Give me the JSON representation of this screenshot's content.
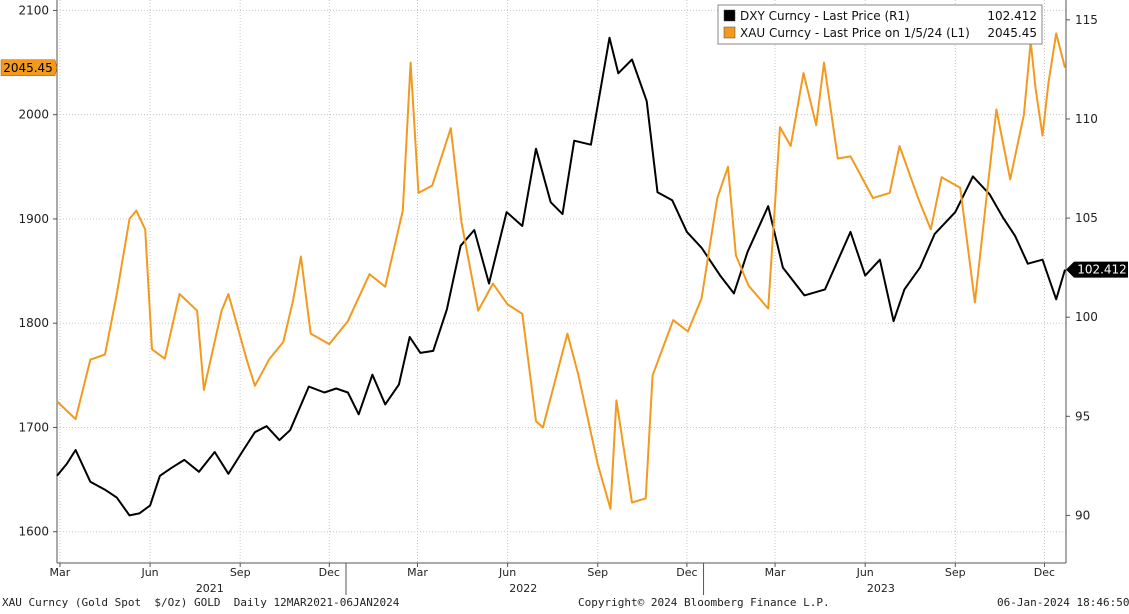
{
  "chart_data": {
    "type": "line",
    "x_range": [
      "2021-03-12",
      "2024-01-06"
    ],
    "y_left": {
      "label": "L1",
      "ylim": [
        1570,
        2110
      ],
      "ticks": [
        1600,
        1700,
        1800,
        1900,
        2000,
        2100
      ]
    },
    "y_right": {
      "label": "R1",
      "ylim": [
        87.6,
        116
      ],
      "ticks": [
        90,
        95,
        100,
        105,
        110,
        115
      ]
    },
    "x_month_labels": [
      {
        "label": "Mar",
        "date": "2021-03-15"
      },
      {
        "label": "Jun",
        "date": "2021-06-15"
      },
      {
        "label": "Sep",
        "date": "2021-09-15"
      },
      {
        "label": "Dec",
        "date": "2021-12-15"
      },
      {
        "label": "Mar",
        "date": "2022-03-15"
      },
      {
        "label": "Jun",
        "date": "2022-06-15"
      },
      {
        "label": "Sep",
        "date": "2022-09-15"
      },
      {
        "label": "Dec",
        "date": "2022-12-15"
      },
      {
        "label": "Mar",
        "date": "2023-03-15"
      },
      {
        "label": "Jun",
        "date": "2023-06-15"
      },
      {
        "label": "Sep",
        "date": "2023-09-15"
      },
      {
        "label": "Dec",
        "date": "2023-12-15"
      }
    ],
    "x_year_labels": [
      {
        "label": "2021",
        "date": "2021-08-15"
      },
      {
        "label": "2022",
        "date": "2022-07-01"
      },
      {
        "label": "2023",
        "date": "2023-07-01"
      }
    ],
    "series": [
      {
        "name": "DXY Curncy - Last Price (R1)",
        "last_label": "102.412",
        "axis": "right",
        "color": "#000000",
        "points": [
          [
            "2021-03-12",
            92.0
          ],
          [
            "2021-03-22",
            92.6
          ],
          [
            "2021-03-31",
            93.3
          ],
          [
            "2021-04-15",
            91.7
          ],
          [
            "2021-04-30",
            91.3
          ],
          [
            "2021-05-12",
            90.9
          ],
          [
            "2021-05-25",
            90.0
          ],
          [
            "2021-06-04",
            90.1
          ],
          [
            "2021-06-15",
            90.5
          ],
          [
            "2021-06-25",
            92.0
          ],
          [
            "2021-07-07",
            92.4
          ],
          [
            "2021-07-20",
            92.8
          ],
          [
            "2021-08-04",
            92.2
          ],
          [
            "2021-08-20",
            93.2
          ],
          [
            "2021-09-03",
            92.1
          ],
          [
            "2021-09-17",
            93.2
          ],
          [
            "2021-09-30",
            94.2
          ],
          [
            "2021-10-12",
            94.5
          ],
          [
            "2021-10-25",
            93.8
          ],
          [
            "2021-11-05",
            94.3
          ],
          [
            "2021-11-24",
            96.5
          ],
          [
            "2021-12-10",
            96.2
          ],
          [
            "2021-12-22",
            96.4
          ],
          [
            "2022-01-03",
            96.2
          ],
          [
            "2022-01-14",
            95.1
          ],
          [
            "2022-01-28",
            97.1
          ],
          [
            "2022-02-10",
            95.6
          ],
          [
            "2022-02-24",
            96.6
          ],
          [
            "2022-03-07",
            99.0
          ],
          [
            "2022-03-18",
            98.2
          ],
          [
            "2022-03-31",
            98.3
          ],
          [
            "2022-04-14",
            100.4
          ],
          [
            "2022-04-28",
            103.6
          ],
          [
            "2022-05-12",
            104.4
          ],
          [
            "2022-05-27",
            101.7
          ],
          [
            "2022-06-14",
            105.3
          ],
          [
            "2022-06-30",
            104.6
          ],
          [
            "2022-07-14",
            108.5
          ],
          [
            "2022-07-29",
            105.8
          ],
          [
            "2022-08-10",
            105.2
          ],
          [
            "2022-08-22",
            108.9
          ],
          [
            "2022-09-08",
            108.7
          ],
          [
            "2022-09-27",
            114.1
          ],
          [
            "2022-10-06",
            112.3
          ],
          [
            "2022-10-20",
            113.0
          ],
          [
            "2022-11-04",
            110.9
          ],
          [
            "2022-11-15",
            106.3
          ],
          [
            "2022-11-30",
            105.9
          ],
          [
            "2022-12-15",
            104.3
          ],
          [
            "2022-12-30",
            103.5
          ],
          [
            "2023-01-18",
            102.1
          ],
          [
            "2023-02-01",
            101.2
          ],
          [
            "2023-02-15",
            103.3
          ],
          [
            "2023-03-08",
            105.6
          ],
          [
            "2023-03-23",
            102.5
          ],
          [
            "2023-04-14",
            101.1
          ],
          [
            "2023-05-05",
            101.4
          ],
          [
            "2023-05-31",
            104.3
          ],
          [
            "2023-06-15",
            102.1
          ],
          [
            "2023-06-30",
            102.9
          ],
          [
            "2023-07-14",
            99.8
          ],
          [
            "2023-07-25",
            101.4
          ],
          [
            "2023-08-10",
            102.5
          ],
          [
            "2023-08-25",
            104.2
          ],
          [
            "2023-09-15",
            105.3
          ],
          [
            "2023-10-03",
            107.1
          ],
          [
            "2023-10-20",
            106.2
          ],
          [
            "2023-11-03",
            105.0
          ],
          [
            "2023-11-15",
            104.1
          ],
          [
            "2023-11-28",
            102.7
          ],
          [
            "2023-12-13",
            102.9
          ],
          [
            "2023-12-27",
            100.9
          ],
          [
            "2024-01-05",
            102.4
          ]
        ]
      },
      {
        "name": "XAU Curncy - Last Price on 1/5/24 (L1)",
        "last_label": "2045.45",
        "axis": "left",
        "color": "#f39a1e",
        "points": [
          [
            "2021-03-12",
            1725
          ],
          [
            "2021-03-31",
            1708
          ],
          [
            "2021-04-15",
            1765
          ],
          [
            "2021-04-30",
            1770
          ],
          [
            "2021-05-12",
            1828
          ],
          [
            "2021-05-25",
            1900
          ],
          [
            "2021-06-01",
            1908
          ],
          [
            "2021-06-10",
            1890
          ],
          [
            "2021-06-17",
            1775
          ],
          [
            "2021-06-30",
            1766
          ],
          [
            "2021-07-15",
            1828
          ],
          [
            "2021-08-02",
            1812
          ],
          [
            "2021-08-09",
            1736
          ],
          [
            "2021-08-27",
            1812
          ],
          [
            "2021-09-03",
            1828
          ],
          [
            "2021-09-22",
            1764
          ],
          [
            "2021-09-30",
            1740
          ],
          [
            "2021-10-15",
            1766
          ],
          [
            "2021-10-29",
            1782
          ],
          [
            "2021-11-08",
            1822
          ],
          [
            "2021-11-16",
            1864
          ],
          [
            "2021-11-26",
            1790
          ],
          [
            "2021-12-15",
            1780
          ],
          [
            "2022-01-03",
            1802
          ],
          [
            "2022-01-25",
            1847
          ],
          [
            "2022-02-10",
            1835
          ],
          [
            "2022-02-28",
            1908
          ],
          [
            "2022-03-08",
            2050
          ],
          [
            "2022-03-16",
            1925
          ],
          [
            "2022-03-30",
            1932
          ],
          [
            "2022-04-18",
            1987
          ],
          [
            "2022-04-29",
            1896
          ],
          [
            "2022-05-16",
            1812
          ],
          [
            "2022-05-31",
            1838
          ],
          [
            "2022-06-15",
            1818
          ],
          [
            "2022-06-30",
            1809
          ],
          [
            "2022-07-14",
            1706
          ],
          [
            "2022-07-21",
            1700
          ],
          [
            "2022-08-15",
            1790
          ],
          [
            "2022-08-26",
            1751
          ],
          [
            "2022-09-15",
            1665
          ],
          [
            "2022-09-28",
            1622
          ],
          [
            "2022-10-04",
            1726
          ],
          [
            "2022-10-20",
            1628
          ],
          [
            "2022-11-03",
            1632
          ],
          [
            "2022-11-10",
            1750
          ],
          [
            "2022-12-01",
            1803
          ],
          [
            "2022-12-16",
            1792
          ],
          [
            "2022-12-30",
            1824
          ],
          [
            "2023-01-15",
            1920
          ],
          [
            "2023-01-26",
            1950
          ],
          [
            "2023-02-03",
            1865
          ],
          [
            "2023-02-16",
            1836
          ],
          [
            "2023-03-08",
            1814
          ],
          [
            "2023-03-20",
            1988
          ],
          [
            "2023-03-31",
            1970
          ],
          [
            "2023-04-13",
            2040
          ],
          [
            "2023-04-26",
            1990
          ],
          [
            "2023-05-04",
            2050
          ],
          [
            "2023-05-18",
            1958
          ],
          [
            "2023-05-31",
            1960
          ],
          [
            "2023-06-23",
            1920
          ],
          [
            "2023-07-10",
            1925
          ],
          [
            "2023-07-20",
            1970
          ],
          [
            "2023-08-08",
            1920
          ],
          [
            "2023-08-21",
            1890
          ],
          [
            "2023-09-01",
            1940
          ],
          [
            "2023-09-20",
            1930
          ],
          [
            "2023-10-05",
            1820
          ],
          [
            "2023-10-18",
            1930
          ],
          [
            "2023-10-27",
            2005
          ],
          [
            "2023-11-10",
            1938
          ],
          [
            "2023-11-24",
            2000
          ],
          [
            "2023-12-01",
            2070
          ],
          [
            "2023-12-06",
            2025
          ],
          [
            "2023-12-13",
            1980
          ],
          [
            "2023-12-19",
            2030
          ],
          [
            "2023-12-27",
            2078
          ],
          [
            "2024-01-05",
            2045
          ]
        ]
      }
    ],
    "value_flags": [
      {
        "series": 0,
        "text": "102.412",
        "side": "right",
        "bg": "#000000",
        "fg": "#ffffff"
      },
      {
        "series": 1,
        "text": "2045.45",
        "side": "left",
        "bg": "#f39a1e",
        "fg": "#000000"
      }
    ],
    "legend": {
      "placement": "top-right",
      "entries": [
        {
          "name": "DXY Curncy - Last Price (R1)",
          "value": "102.412",
          "color": "#000000"
        },
        {
          "name": "XAU Curncy - Last Price on 1/5/24 (L1)",
          "value": "2045.45",
          "color": "#f39a1e"
        }
      ]
    }
  },
  "footer": {
    "left": "XAU Curncy (Gold Spot  $/Oz) GOLD  Daily 12MAR2021-06JAN2024",
    "center": "Copyright© 2024 Bloomberg Finance L.P.",
    "right": "06-Jan-2024 18:46:50"
  },
  "colors": {
    "gold": "#f39a1e",
    "dxy": "#000000",
    "grid": "#c8c8c8",
    "plot_bg": "#ffffff"
  }
}
